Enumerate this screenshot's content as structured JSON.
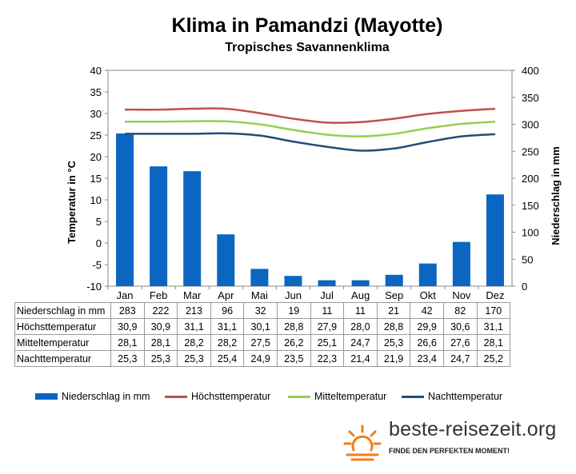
{
  "chart_data": {
    "type": "bar",
    "title": "Klima in Pamandzi (Mayotte)",
    "subtitle": "Tropisches Savannenklima",
    "categories": [
      "Jan",
      "Feb",
      "Mar",
      "Apr",
      "Mai",
      "Jun",
      "Jul",
      "Aug",
      "Sep",
      "Okt",
      "Nov",
      "Dez"
    ],
    "left_axis": {
      "label": "Temperatur in °C",
      "ylim": [
        -10,
        40
      ],
      "ticks": [
        "40",
        "35",
        "30",
        "25",
        "20",
        "15",
        "10",
        "5",
        "0",
        "-5",
        "-10"
      ]
    },
    "right_axis": {
      "label": "Niederschlag in mm",
      "ylim": [
        0,
        400
      ],
      "ticks": [
        "400",
        "350",
        "300",
        "250",
        "200",
        "150",
        "100",
        "50",
        "0"
      ]
    },
    "series": [
      {
        "name": "Niederschlag in mm",
        "type": "bar",
        "axis": "right",
        "color": "#0a66c1",
        "values": [
          283,
          222,
          213,
          96,
          32,
          19,
          11,
          11,
          21,
          42,
          82,
          170
        ]
      },
      {
        "name": "Höchsttemperatur",
        "type": "line",
        "axis": "left",
        "color": "#c0504d",
        "values": [
          30.9,
          30.9,
          31.1,
          31.1,
          30.1,
          28.8,
          27.9,
          28.0,
          28.8,
          29.9,
          30.6,
          31.1
        ]
      },
      {
        "name": "Mitteltemperatur",
        "type": "line",
        "axis": "left",
        "color": "#92d050",
        "values": [
          28.1,
          28.1,
          28.2,
          28.2,
          27.5,
          26.2,
          25.1,
          24.7,
          25.3,
          26.6,
          27.6,
          28.1
        ]
      },
      {
        "name": "Nachttemperatur",
        "type": "line",
        "axis": "left",
        "color": "#1f4e79",
        "values": [
          25.3,
          25.3,
          25.3,
          25.4,
          24.9,
          23.5,
          22.3,
          21.4,
          21.9,
          23.4,
          24.7,
          25.2
        ]
      }
    ],
    "grid": false,
    "legend": "bottom"
  },
  "table": {
    "rows": [
      {
        "label": "Niederschlag in mm",
        "cells": [
          "283",
          "222",
          "213",
          "96",
          "32",
          "19",
          "11",
          "11",
          "21",
          "42",
          "82",
          "170"
        ]
      },
      {
        "label": "Höchsttemperatur",
        "cells": [
          "30,9",
          "30,9",
          "31,1",
          "31,1",
          "30,1",
          "28,8",
          "27,9",
          "28,0",
          "28,8",
          "29,9",
          "30,6",
          "31,1"
        ]
      },
      {
        "label": "Mitteltemperatur",
        "cells": [
          "28,1",
          "28,1",
          "28,2",
          "28,2",
          "27,5",
          "26,2",
          "25,1",
          "24,7",
          "25,3",
          "26,6",
          "27,6",
          "28,1"
        ]
      },
      {
        "label": "Nachttemperatur",
        "cells": [
          "25,3",
          "25,3",
          "25,3",
          "25,4",
          "24,9",
          "23,5",
          "22,3",
          "21,4",
          "21,9",
          "23,4",
          "24,7",
          "25,2"
        ]
      }
    ]
  },
  "brand": {
    "name": "beste-reisezeit.org",
    "tagline": "FINDE DEN PERFEKTEN MOMENT!",
    "icon": "sun-icon",
    "accent": "#f07d1a"
  }
}
